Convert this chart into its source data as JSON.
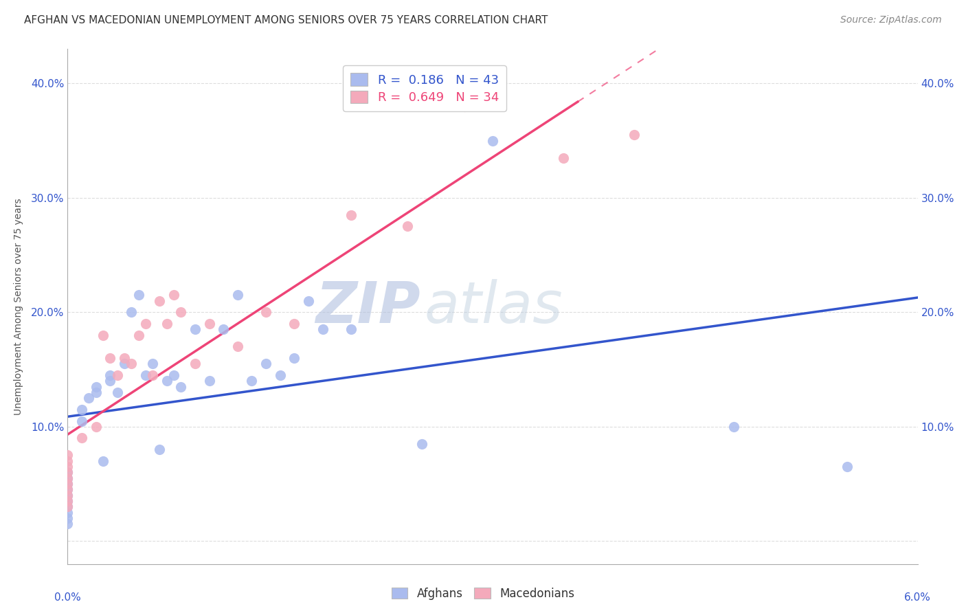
{
  "title": "AFGHAN VS MACEDONIAN UNEMPLOYMENT AMONG SENIORS OVER 75 YEARS CORRELATION CHART",
  "source": "Source: ZipAtlas.com",
  "ylabel": "Unemployment Among Seniors over 75 years",
  "xlim": [
    0.0,
    6.0
  ],
  "ylim": [
    -2.0,
    43.0
  ],
  "afghan_R": 0.186,
  "afghan_N": 43,
  "macedonian_R": 0.649,
  "macedonian_N": 34,
  "afghan_color": "#AABBEE",
  "macedonian_color": "#F4AABB",
  "afghan_line_color": "#3355CC",
  "macedonian_line_color": "#EE4477",
  "watermark_zip": "ZIP",
  "watermark_atlas": "atlas",
  "background_color": "#FFFFFF",
  "afghan_x": [
    0.0,
    0.0,
    0.0,
    0.0,
    0.0,
    0.0,
    0.0,
    0.0,
    0.0,
    0.0,
    0.1,
    0.1,
    0.15,
    0.2,
    0.2,
    0.25,
    0.3,
    0.3,
    0.35,
    0.4,
    0.45,
    0.5,
    0.55,
    0.6,
    0.65,
    0.7,
    0.75,
    0.8,
    0.9,
    1.0,
    1.1,
    1.2,
    1.3,
    1.4,
    1.5,
    1.6,
    1.7,
    1.8,
    2.0,
    2.5,
    3.0,
    4.7,
    5.5
  ],
  "afghan_y": [
    6.0,
    5.5,
    5.0,
    4.5,
    4.0,
    3.5,
    3.0,
    2.5,
    2.0,
    1.5,
    11.5,
    10.5,
    12.5,
    13.5,
    13.0,
    7.0,
    14.0,
    14.5,
    13.0,
    15.5,
    20.0,
    21.5,
    14.5,
    15.5,
    8.0,
    14.0,
    14.5,
    13.5,
    18.5,
    14.0,
    18.5,
    21.5,
    14.0,
    15.5,
    14.5,
    16.0,
    21.0,
    18.5,
    18.5,
    8.5,
    35.0,
    10.0,
    6.5
  ],
  "macedonian_x": [
    0.0,
    0.0,
    0.0,
    0.0,
    0.0,
    0.0,
    0.0,
    0.0,
    0.0,
    0.0,
    0.1,
    0.2,
    0.25,
    0.3,
    0.35,
    0.4,
    0.45,
    0.5,
    0.55,
    0.6,
    0.65,
    0.7,
    0.75,
    0.8,
    0.9,
    1.0,
    1.2,
    1.4,
    1.6,
    2.0,
    2.4,
    2.8,
    3.5,
    4.0
  ],
  "macedonian_y": [
    7.5,
    7.0,
    6.5,
    6.0,
    5.5,
    5.0,
    4.5,
    4.0,
    3.5,
    3.0,
    9.0,
    10.0,
    18.0,
    16.0,
    14.5,
    16.0,
    15.5,
    18.0,
    19.0,
    14.5,
    21.0,
    19.0,
    21.5,
    20.0,
    15.5,
    19.0,
    17.0,
    20.0,
    19.0,
    28.5,
    27.5,
    38.0,
    33.5,
    35.5
  ],
  "mac_solid_xmax": 3.6,
  "grid_color": "#DDDDDD",
  "grid_linestyle": "--",
  "title_fontsize": 11,
  "source_fontsize": 10,
  "tick_fontsize": 11,
  "ylabel_fontsize": 10
}
